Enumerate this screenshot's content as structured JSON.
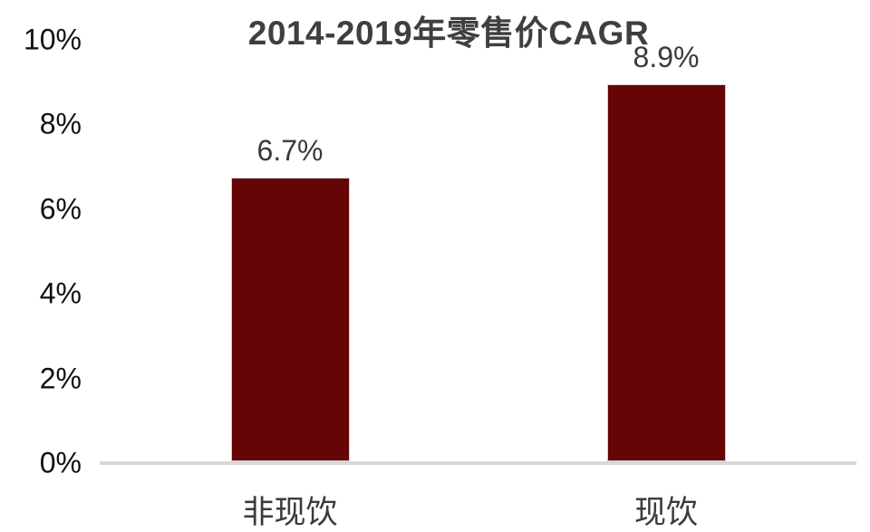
{
  "chart_data": {
    "type": "bar",
    "title": "2014-2019年零售价CAGR",
    "categories": [
      "非现饮",
      "现饮"
    ],
    "values": [
      6.7,
      8.9
    ],
    "data_labels": [
      "6.7%",
      "8.9%"
    ],
    "xlabel": "",
    "ylabel": "",
    "ylim": [
      0,
      10
    ],
    "y_ticks": [
      0,
      2,
      4,
      6,
      8,
      10
    ],
    "y_tick_labels": [
      "0%",
      "2%",
      "4%",
      "6%",
      "8%",
      "10%"
    ],
    "grid": false,
    "legend": "none",
    "bar_color": "#650505",
    "axis_line_color": "#d9d9d9",
    "title_color": "#3f3f3f",
    "label_color": "#3a3a3a"
  }
}
